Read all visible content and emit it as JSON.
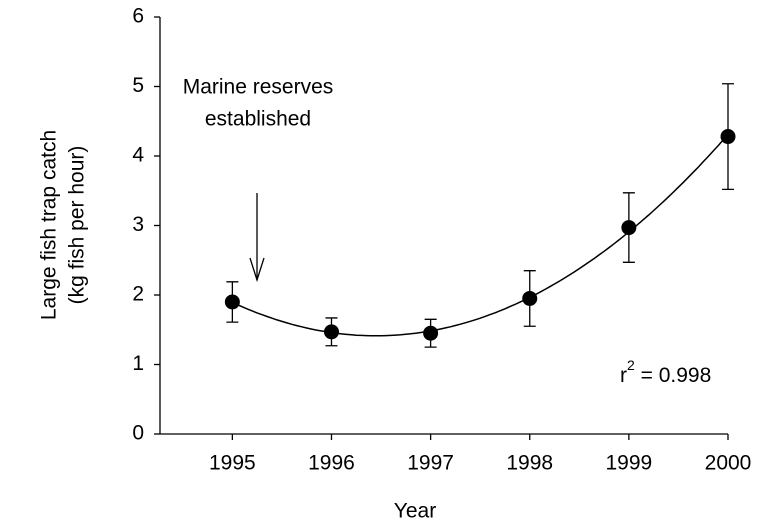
{
  "chart_data": {
    "type": "scatter",
    "x_label": "Year",
    "y_label": [
      "Large fish trap catch",
      "(kg fish per hour)"
    ],
    "annotation": [
      "Marine reserves",
      "established"
    ],
    "r2": {
      "base": "r",
      "sup": "2",
      "rest": " = 0.998"
    },
    "x": [
      1995,
      1996,
      1997,
      1998,
      1999,
      2000
    ],
    "values": [
      1.9,
      1.47,
      1.45,
      1.95,
      2.97,
      4.28
    ],
    "errors": [
      0.29,
      0.2,
      0.2,
      0.4,
      0.5,
      0.76
    ],
    "color": "#000000",
    "xlim": [
      1994.27,
      2000
    ],
    "xticks": [
      1995,
      1996,
      1997,
      1998,
      1999,
      2000
    ],
    "ylim": [
      0,
      6
    ],
    "yticks": [
      0,
      1,
      2,
      3,
      4,
      5,
      6
    ]
  }
}
